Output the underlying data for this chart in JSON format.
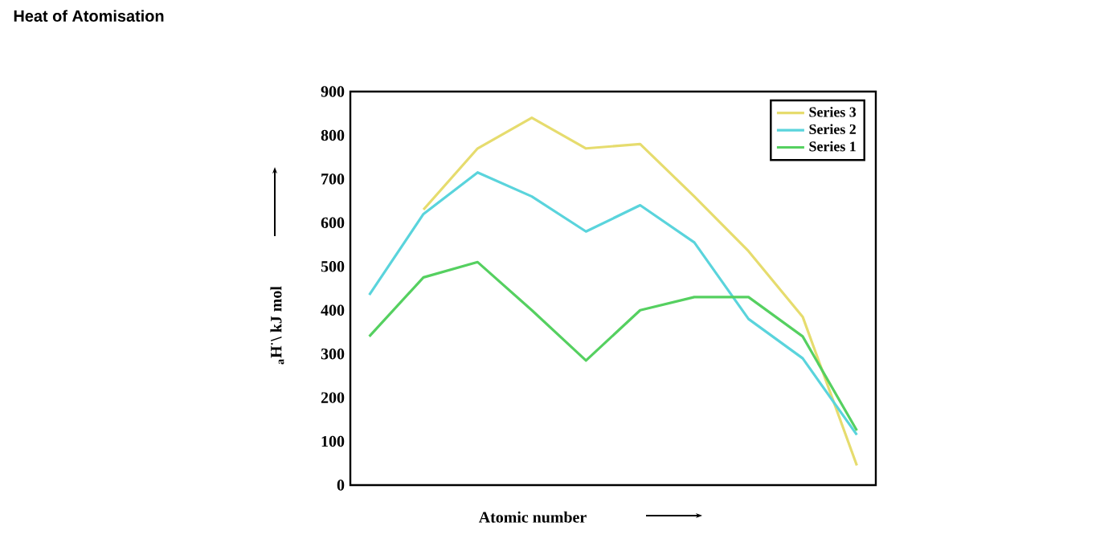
{
  "chart_data": {
    "type": "line",
    "title": "Heat of Atomisation",
    "xlabel": "Atomic number",
    "ylabel": "$_{a}$H$^{·}$\\ kJ mol",
    "categories": [
      null,
      null,
      null,
      null,
      null,
      null,
      null,
      null,
      null,
      null
    ],
    "series": [
      {
        "name": "Series 3",
        "color": "#e6dc6e",
        "values": [
          null,
          630,
          770,
          840,
          770,
          780,
          660,
          535,
          385,
          45
        ]
      },
      {
        "name": "Series 2",
        "color": "#5ad4dc",
        "values": [
          435,
          620,
          715,
          660,
          580,
          640,
          555,
          380,
          290,
          115
        ]
      },
      {
        "name": "Series 1",
        "color": "#55d060",
        "values": [
          340,
          475,
          510,
          400,
          285,
          400,
          430,
          430,
          340,
          125
        ]
      }
    ],
    "ylim": [
      0,
      900
    ],
    "yticks": [
      0,
      100,
      200,
      300,
      400,
      500,
      600,
      700,
      800,
      900
    ],
    "legend": "top right",
    "grid": false,
    "marker": "none",
    "line_style": "solid"
  }
}
